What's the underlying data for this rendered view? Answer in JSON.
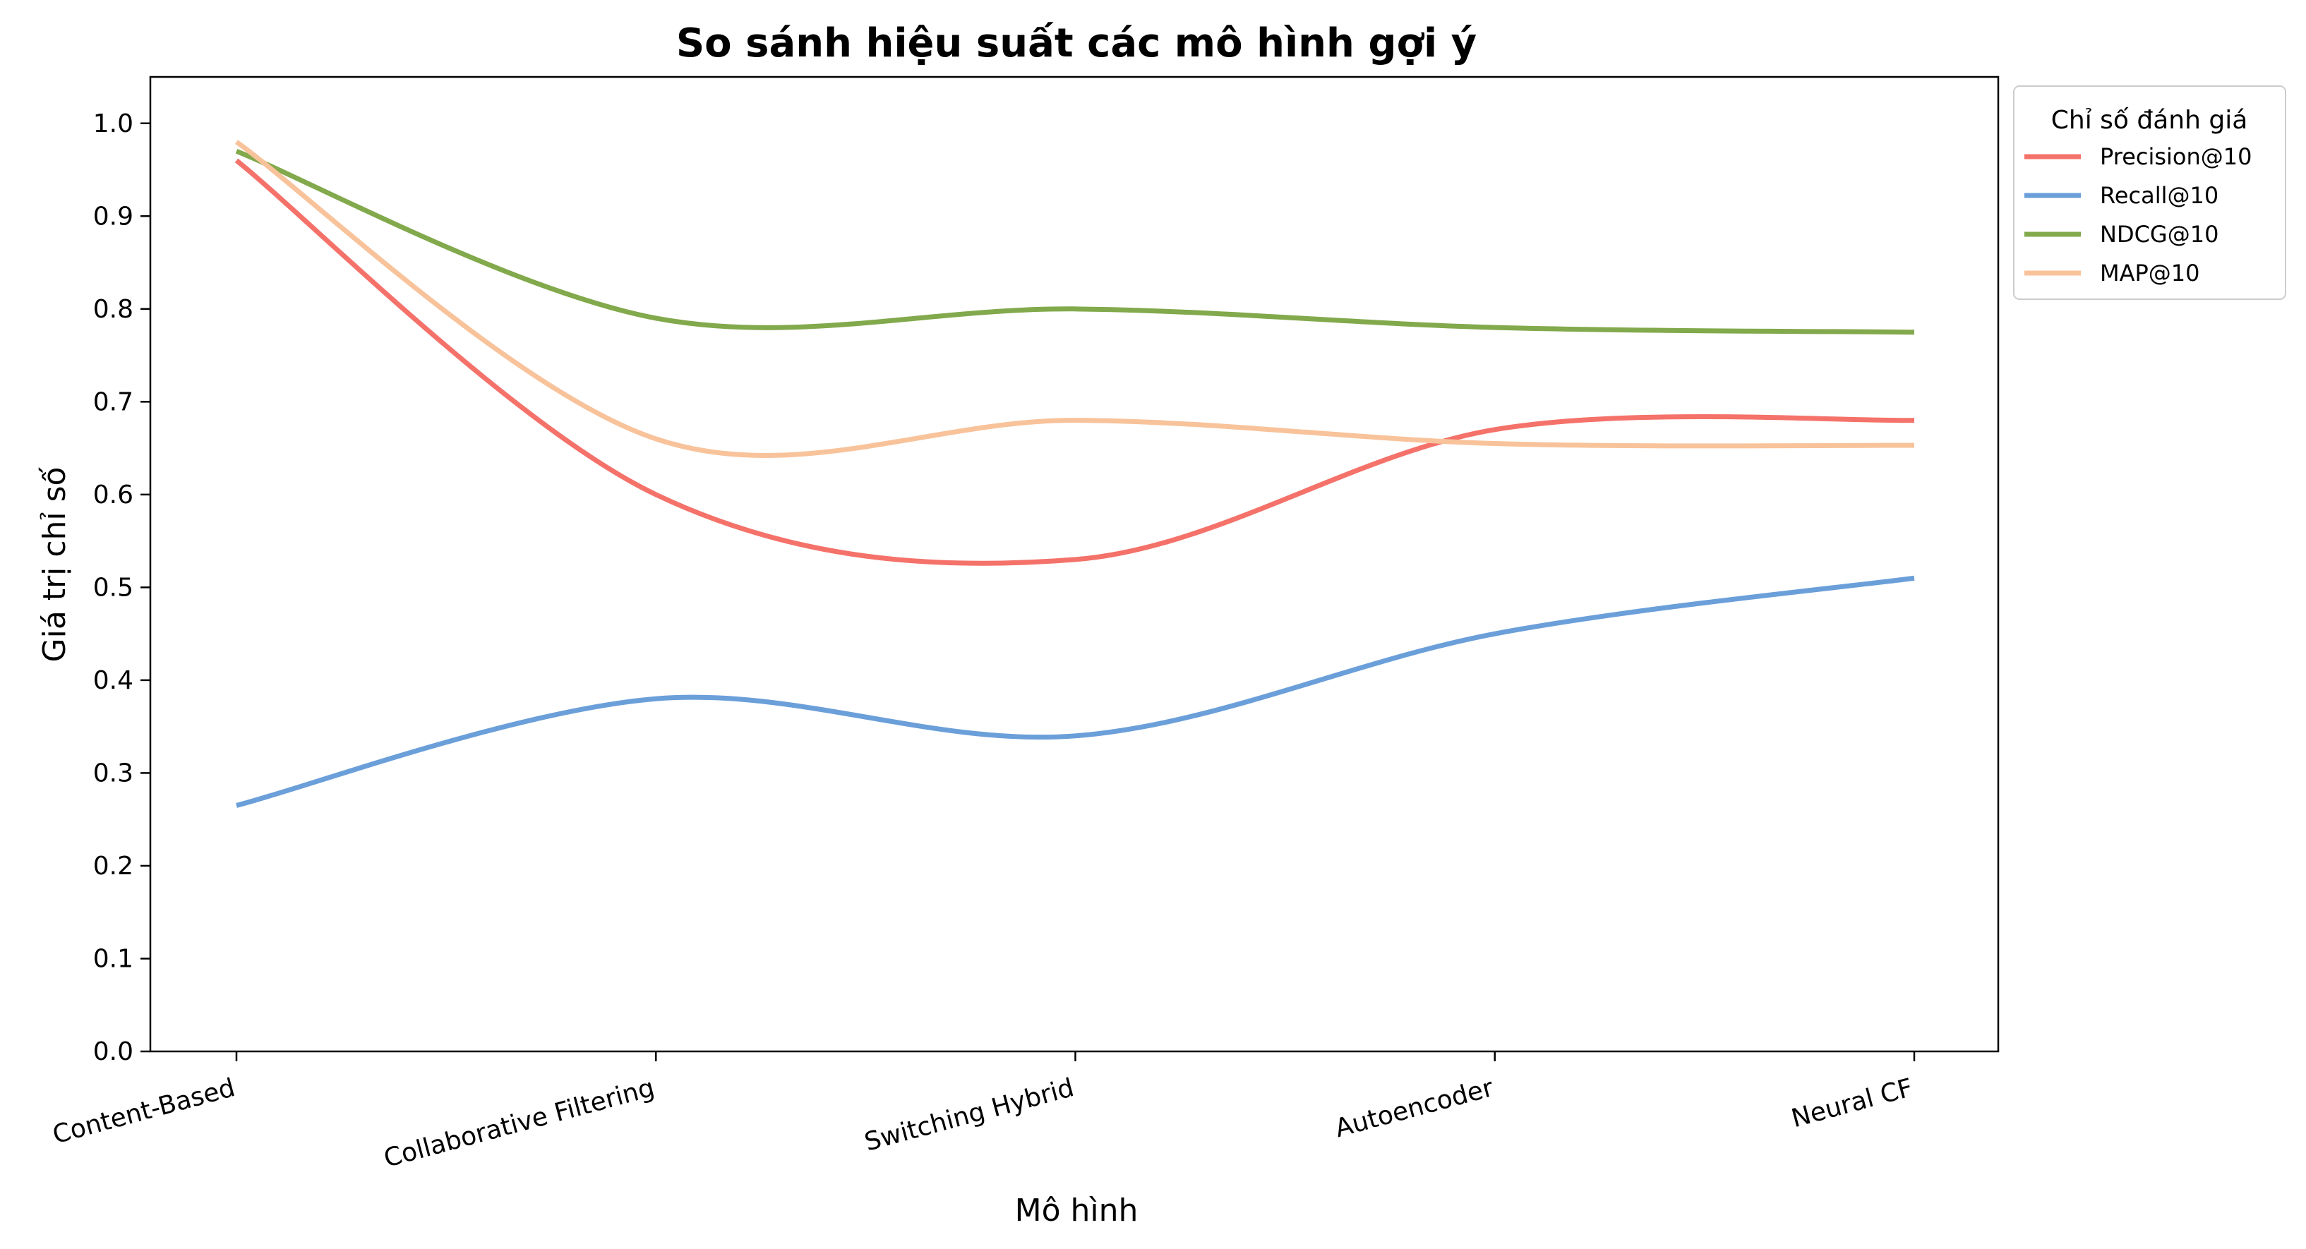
{
  "chart_data": {
    "type": "line",
    "title": "So sánh hiệu suất các mô hình gợi ý",
    "xlabel": "Mô hình",
    "ylabel": "Giá trị chỉ số",
    "categories": [
      "Content-Based",
      "Collaborative Filtering",
      "Switching Hybrid",
      "Autoencoder",
      "Neural CF"
    ],
    "ylim": [
      0,
      1.05
    ],
    "yticks": [
      "0.0",
      "0.1",
      "0.2",
      "0.3",
      "0.4",
      "0.5",
      "0.6",
      "0.7",
      "0.8",
      "0.9",
      "1.0"
    ],
    "grid": false,
    "smooth": true,
    "legend": {
      "title": "Chỉ số đánh giá",
      "placement": "outside top-right"
    },
    "series": [
      {
        "name": "Precision@10",
        "color": "#f4726a",
        "values": [
          0.96,
          0.6,
          0.53,
          0.67,
          0.68
        ]
      },
      {
        "name": "Recall@10",
        "color": "#6b9fd9",
        "values": [
          0.265,
          0.38,
          0.34,
          0.45,
          0.51
        ]
      },
      {
        "name": "NDCG@10",
        "color": "#82a94c",
        "values": [
          0.97,
          0.79,
          0.8,
          0.78,
          0.775
        ]
      },
      {
        "name": "MAP@10",
        "color": "#f8c39b",
        "values": [
          0.98,
          0.66,
          0.68,
          0.655,
          0.653
        ]
      }
    ]
  }
}
